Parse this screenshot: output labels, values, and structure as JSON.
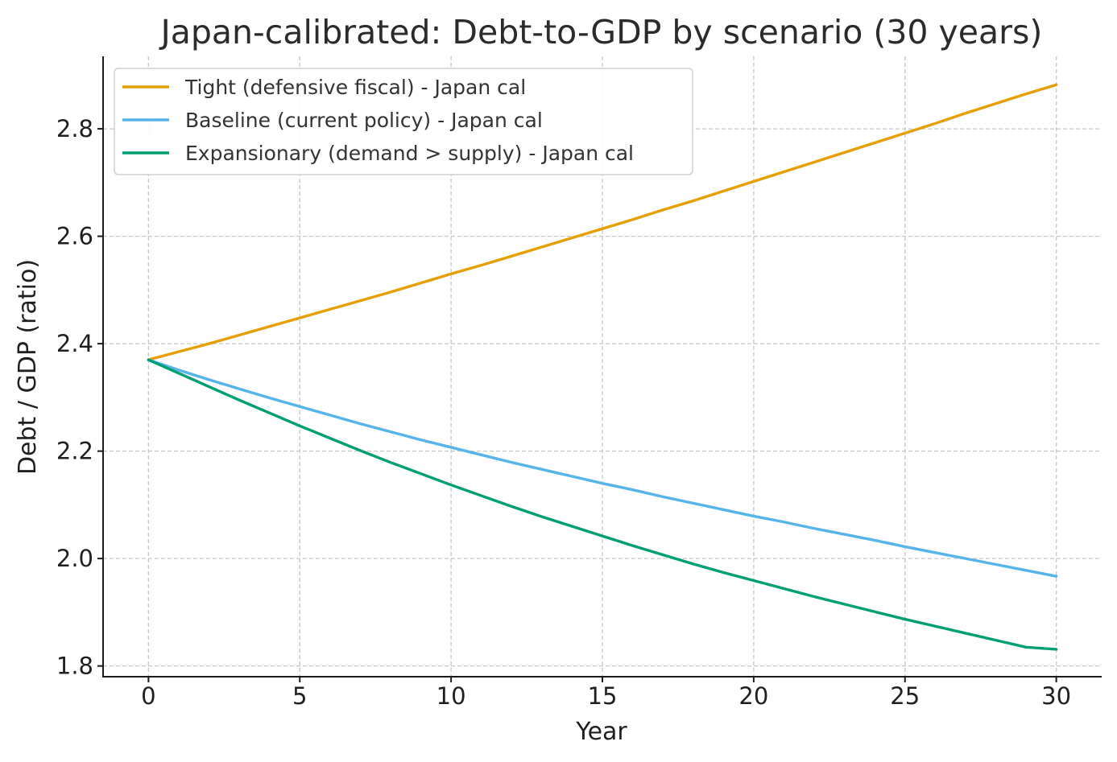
{
  "chart_data": {
    "type": "line",
    "title": "Japan-calibrated: Debt-to-GDP by scenario (30 years)",
    "xlabel": "Year",
    "ylabel": "Debt / GDP (ratio)",
    "xlim": [
      -1.5,
      31.5
    ],
    "ylim": [
      1.78,
      2.935
    ],
    "xticks": [
      0,
      5,
      10,
      15,
      20,
      25,
      30
    ],
    "xtick_labels": [
      "0",
      "5",
      "10",
      "15",
      "20",
      "25",
      "30"
    ],
    "yticks": [
      1.8,
      2.0,
      2.2,
      2.4,
      2.6,
      2.8
    ],
    "ytick_labels": [
      "1.8",
      "2.0",
      "2.2",
      "2.4",
      "2.6",
      "2.8"
    ],
    "grid": true,
    "legend_position": "top-left",
    "x": [
      0,
      1,
      2,
      3,
      4,
      5,
      6,
      7,
      8,
      9,
      10,
      11,
      12,
      13,
      14,
      15,
      16,
      17,
      18,
      19,
      20,
      21,
      22,
      23,
      24,
      25,
      26,
      27,
      28,
      29,
      30
    ],
    "series": [
      {
        "name": "Tight (defensive fiscal) - Japan cal",
        "color": "#E69F00",
        "values": [
          2.37,
          2.385,
          2.4,
          2.416,
          2.432,
          2.448,
          2.464,
          2.48,
          2.496,
          2.513,
          2.53,
          2.546,
          2.563,
          2.58,
          2.597,
          2.614,
          2.631,
          2.649,
          2.666,
          2.684,
          2.702,
          2.72,
          2.738,
          2.756,
          2.774,
          2.792,
          2.81,
          2.829,
          2.847,
          2.865,
          2.882
        ]
      },
      {
        "name": "Baseline (current policy) - Japan cal",
        "color": "#56B4E9",
        "values": [
          2.37,
          2.351,
          2.333,
          2.316,
          2.299,
          2.283,
          2.267,
          2.251,
          2.236,
          2.221,
          2.207,
          2.193,
          2.179,
          2.166,
          2.153,
          2.14,
          2.128,
          2.115,
          2.103,
          2.091,
          2.079,
          2.068,
          2.056,
          2.045,
          2.034,
          2.022,
          2.011,
          2.0,
          1.989,
          1.978,
          1.967
        ]
      },
      {
        "name": "Expansionary (demand > supply) - Japan cal",
        "color": "#009E73",
        "values": [
          2.37,
          2.345,
          2.32,
          2.295,
          2.271,
          2.247,
          2.224,
          2.201,
          2.179,
          2.158,
          2.137,
          2.117,
          2.097,
          2.078,
          2.06,
          2.042,
          2.024,
          2.007,
          1.99,
          1.974,
          1.959,
          1.944,
          1.929,
          1.915,
          1.901,
          1.887,
          1.874,
          1.861,
          1.848,
          1.835,
          1.831
        ]
      }
    ]
  }
}
